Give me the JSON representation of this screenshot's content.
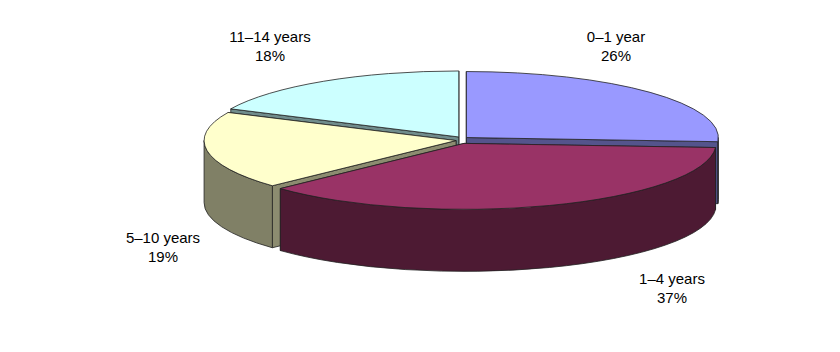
{
  "chart_data": {
    "type": "pie",
    "categories": [
      "0–1 year",
      "1–4 years",
      "5–10 years",
      "11–14 years"
    ],
    "values": [
      26,
      37,
      19,
      18
    ],
    "value_labels": [
      "26%",
      "37%",
      "19%",
      "18%"
    ],
    "colors": [
      "#9999ff",
      "#993366",
      "#ffffcc",
      "#ccffff"
    ],
    "data_labels": true
  }
}
